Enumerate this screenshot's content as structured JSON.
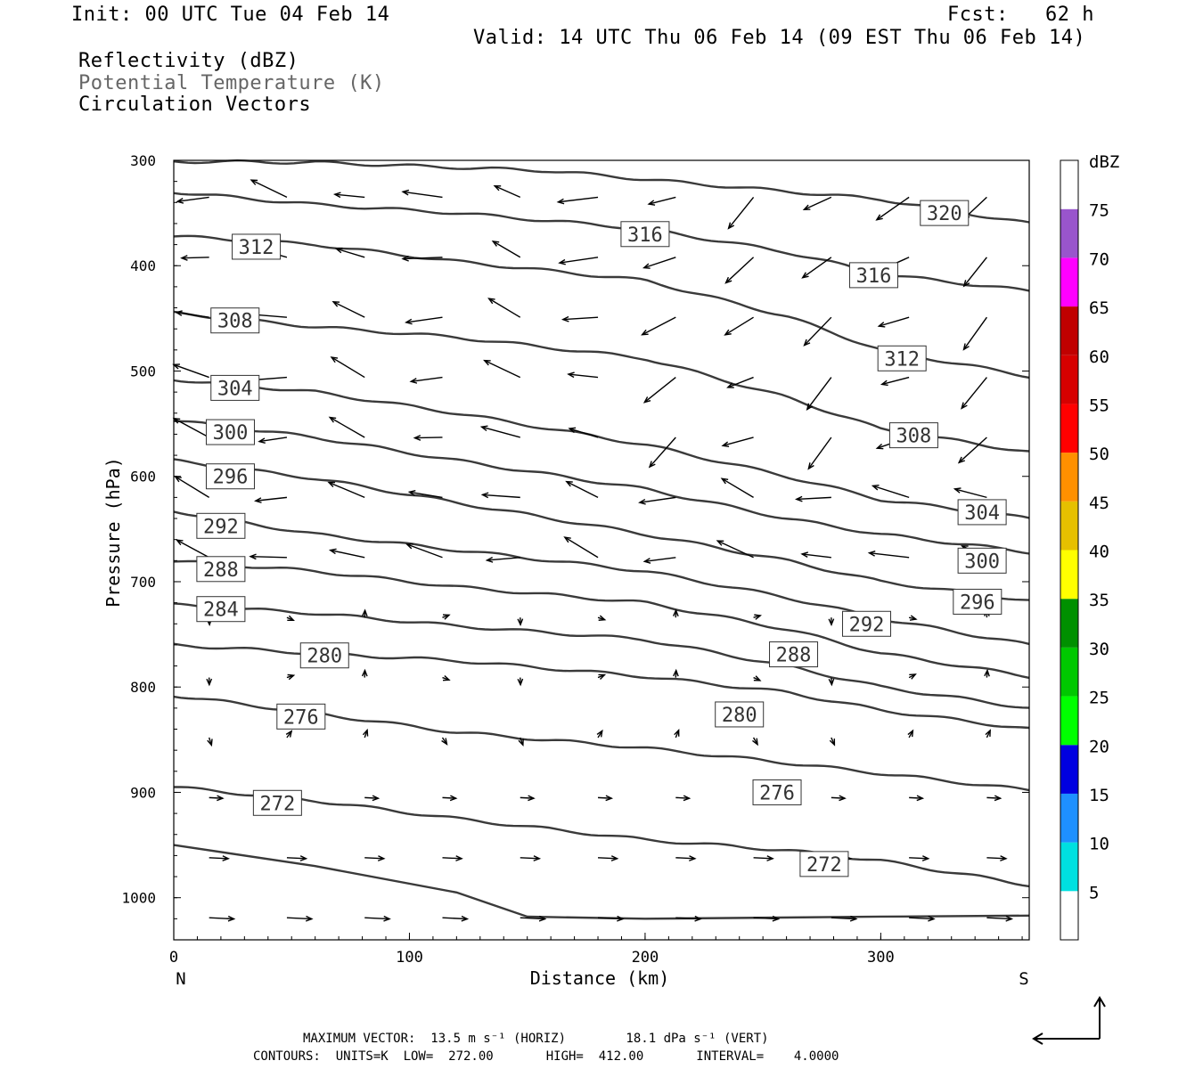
{
  "header": {
    "init": "Init: 00 UTC Tue 04 Feb 14",
    "fcst": "Fcst:   62 h",
    "valid": "Valid: 14 UTC Thu 06 Feb 14 (09 EST Thu 06 Feb 14)",
    "field1": "Reflectivity (dBZ)",
    "field2": "Potential Temperature (K)",
    "field3": "Circulation Vectors"
  },
  "footer": {
    "line1": "MAXIMUM VECTOR:  13.5 m s⁻¹ (HORIZ)        18.1 dPa s⁻¹ (VERT)",
    "line2": "CONTOURS:  UNITS=K  LOW=  272.00       HIGH=  412.00       INTERVAL=    4.0000"
  },
  "chart_data": {
    "type": "line",
    "xlabel": "Distance (km)",
    "ylabel": "Pressure (hPa)",
    "xlim": [
      0,
      363
    ],
    "ylim": [
      1040,
      300
    ],
    "x_ticks": [
      0,
      100,
      200,
      300
    ],
    "y_ticks": [
      300,
      400,
      500,
      600,
      700,
      800,
      900,
      1000
    ],
    "x_end_labels": {
      "left": "N",
      "right": "S"
    },
    "contour_color": "#3a3a3a",
    "series": [
      {
        "name": "320",
        "label_at": [
          327,
          350
        ],
        "x": [
          0,
          60,
          160,
          220,
          300,
          363
        ],
        "y": [
          301,
          302,
          310,
          322,
          337,
          360
        ]
      },
      {
        "name": "316",
        "label_at": [
          200,
          370
        ],
        "x": [
          0,
          60,
          120,
          200,
          260,
          300,
          363
        ],
        "y": [
          330,
          342,
          350,
          365,
          387,
          408,
          424
        ]
      },
      {
        "name": "316",
        "label_at": [
          297,
          409
        ],
        "x": [
          0,
          60,
          120,
          200,
          260,
          300,
          363
        ],
        "y": [
          330,
          342,
          350,
          365,
          387,
          408,
          424
        ]
      },
      {
        "name": "312",
        "label_at": [
          35,
          382
        ],
        "x": [
          0,
          60,
          120,
          200,
          260,
          300,
          363
        ],
        "y": [
          372,
          380,
          396,
          414,
          448,
          480,
          505
        ]
      },
      {
        "name": "312",
        "label_at": [
          309,
          488
        ],
        "x": [
          0,
          60,
          120,
          200,
          260,
          300,
          363
        ],
        "y": [
          372,
          380,
          396,
          414,
          448,
          480,
          505
        ]
      },
      {
        "name": "308",
        "label_at": [
          26,
          452
        ],
        "x": [
          0,
          60,
          120,
          200,
          260,
          300,
          363
        ],
        "y": [
          445,
          458,
          468,
          488,
          525,
          555,
          577
        ]
      },
      {
        "name": "308",
        "label_at": [
          314,
          561
        ],
        "x": [
          0,
          60,
          120,
          200,
          260,
          300,
          363
        ],
        "y": [
          445,
          458,
          468,
          488,
          525,
          555,
          577
        ]
      },
      {
        "name": "304",
        "label_at": [
          26,
          516
        ],
        "x": [
          0,
          60,
          120,
          200,
          260,
          300,
          363
        ],
        "y": [
          508,
          520,
          540,
          570,
          600,
          622,
          640
        ]
      },
      {
        "name": "304",
        "label_at": [
          343,
          634
        ],
        "x": [
          0,
          60,
          120,
          200,
          260,
          300,
          363
        ],
        "y": [
          508,
          520,
          540,
          570,
          600,
          622,
          640
        ]
      },
      {
        "name": "300",
        "label_at": [
          24,
          558
        ],
        "x": [
          0,
          60,
          120,
          200,
          260,
          300,
          363
        ],
        "y": [
          547,
          563,
          585,
          612,
          640,
          655,
          672
        ]
      },
      {
        "name": "300",
        "label_at": [
          343,
          680
        ],
        "x": [
          0,
          60,
          120,
          200,
          260,
          300,
          363
        ],
        "y": [
          547,
          563,
          585,
          612,
          640,
          655,
          672
        ]
      },
      {
        "name": "296",
        "label_at": [
          24,
          600
        ],
        "x": [
          0,
          60,
          120,
          200,
          260,
          300,
          363
        ],
        "y": [
          585,
          602,
          625,
          655,
          680,
          700,
          718
        ]
      },
      {
        "name": "296",
        "label_at": [
          341,
          719
        ],
        "x": [
          0,
          60,
          120,
          200,
          260,
          300,
          363
        ],
        "y": [
          585,
          602,
          625,
          655,
          680,
          700,
          718
        ]
      },
      {
        "name": "292",
        "label_at": [
          20,
          647
        ],
        "x": [
          0,
          60,
          120,
          200,
          260,
          300,
          363
        ],
        "y": [
          633,
          655,
          670,
          690,
          715,
          735,
          760
        ]
      },
      {
        "name": "292",
        "label_at": [
          294,
          740
        ],
        "x": [
          0,
          60,
          120,
          200,
          260,
          300,
          363
        ],
        "y": [
          633,
          655,
          670,
          690,
          715,
          735,
          760
        ]
      },
      {
        "name": "288",
        "label_at": [
          20,
          688
        ],
        "x": [
          0,
          60,
          120,
          200,
          260,
          300,
          363
        ],
        "y": [
          680,
          690,
          705,
          720,
          745,
          768,
          790
        ]
      },
      {
        "name": "288",
        "label_at": [
          263,
          769
        ],
        "x": [
          0,
          60,
          120,
          200,
          260,
          300,
          363
        ],
        "y": [
          680,
          690,
          705,
          720,
          745,
          768,
          790
        ]
      },
      {
        "name": "284",
        "label_at": [
          20,
          726
        ],
        "x": [
          0,
          60,
          120,
          200,
          260,
          300,
          363
        ],
        "y": [
          722,
          730,
          742,
          755,
          780,
          800,
          820
        ]
      },
      {
        "name": "280",
        "label_at": [
          64,
          770
        ],
        "x": [
          0,
          60,
          120,
          200,
          260,
          300,
          363
        ],
        "y": [
          760,
          768,
          775,
          790,
          805,
          822,
          840
        ]
      },
      {
        "name": "280",
        "label_at": [
          240,
          826
        ],
        "x": [
          0,
          60,
          120,
          200,
          260,
          300,
          363
        ],
        "y": [
          760,
          768,
          775,
          790,
          805,
          822,
          840
        ]
      },
      {
        "name": "276",
        "label_at": [
          54,
          828
        ],
        "x": [
          0,
          60,
          120,
          200,
          260,
          300,
          363
        ],
        "y": [
          808,
          825,
          843,
          858,
          872,
          882,
          898
        ]
      },
      {
        "name": "276",
        "label_at": [
          256,
          900
        ],
        "x": [
          0,
          60,
          120,
          200,
          260,
          300,
          363
        ],
        "y": [
          808,
          825,
          843,
          858,
          872,
          882,
          898
        ]
      },
      {
        "name": "272",
        "label_at": [
          44,
          910
        ],
        "x": [
          0,
          60,
          120,
          200,
          260,
          300,
          363
        ],
        "y": [
          895,
          908,
          925,
          945,
          955,
          965,
          988
        ]
      },
      {
        "name": "272",
        "label_at": [
          276,
          968
        ],
        "x": [
          0,
          60,
          120,
          200,
          260,
          300,
          363
        ],
        "y": [
          895,
          908,
          925,
          945,
          955,
          965,
          988
        ]
      }
    ],
    "ground": {
      "x": [
        0,
        60,
        120,
        150,
        200,
        300,
        363
      ],
      "y": [
        950,
        970,
        995,
        1018,
        1020,
        1018,
        1017
      ]
    },
    "vectors_note": "Circulation vectors (circulation wind in plane)",
    "colorbar": {
      "title": "dBZ",
      "levels": [
        "5",
        "10",
        "15",
        "20",
        "25",
        "30",
        "35",
        "40",
        "45",
        "50",
        "55",
        "60",
        "65",
        "70",
        "75"
      ],
      "colors": [
        "#ffffff",
        "#00e0e0",
        "#1e90ff",
        "#0000e0",
        "#00ff00",
        "#00c800",
        "#009000",
        "#ffff00",
        "#e6c000",
        "#ff9000",
        "#ff0000",
        "#d60000",
        "#c00000",
        "#ff00ff",
        "#9955cc",
        "#ffffff"
      ]
    }
  }
}
